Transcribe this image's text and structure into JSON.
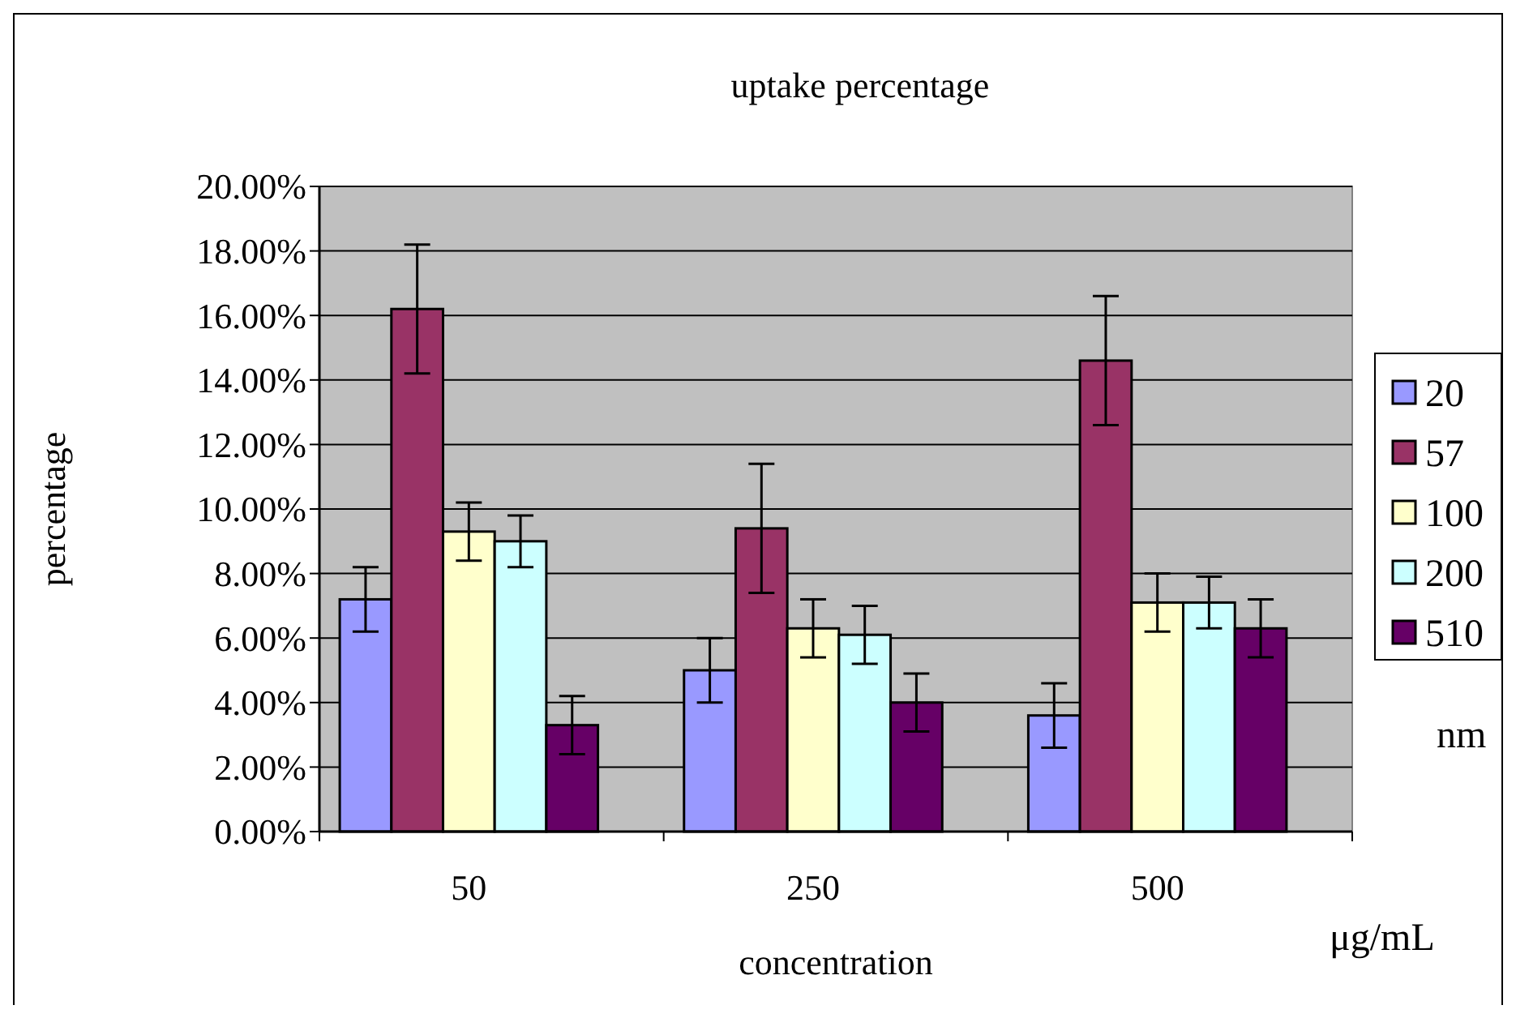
{
  "chart_data": {
    "type": "bar",
    "title": "uptake percentage",
    "xlabel": "concentration",
    "ylabel": "percentage",
    "categories": [
      "50",
      "250",
      "500"
    ],
    "series": [
      {
        "name": "20",
        "color": "#9999ff",
        "values": [
          7.2,
          5.0,
          3.6
        ],
        "errors": [
          1.0,
          1.0,
          1.0
        ]
      },
      {
        "name": "57",
        "color": "#993366",
        "values": [
          16.2,
          9.4,
          14.6
        ],
        "errors": [
          2.0,
          2.0,
          2.0
        ]
      },
      {
        "name": "100",
        "color": "#ffffcc",
        "values": [
          9.3,
          6.3,
          7.1
        ],
        "errors": [
          0.9,
          0.9,
          0.9
        ]
      },
      {
        "name": "200",
        "color": "#ccffff",
        "values": [
          9.0,
          6.1,
          7.1
        ],
        "errors": [
          0.8,
          0.9,
          0.8
        ]
      },
      {
        "name": "510",
        "color": "#660066",
        "values": [
          3.3,
          4.0,
          6.3
        ],
        "errors": [
          0.9,
          0.9,
          0.9
        ]
      }
    ],
    "ylim": [
      0,
      20
    ],
    "yticks": [
      {
        "value": 0,
        "label": "0.00%"
      },
      {
        "value": 2,
        "label": "2.00%"
      },
      {
        "value": 4,
        "label": "4.00%"
      },
      {
        "value": 6,
        "label": "6.00%"
      },
      {
        "value": 8,
        "label": "8.00%"
      },
      {
        "value": 10,
        "label": "10.00%"
      },
      {
        "value": 12,
        "label": "12.00%"
      },
      {
        "value": 14,
        "label": "14.00%"
      },
      {
        "value": 16,
        "label": "16.00%"
      },
      {
        "value": 18,
        "label": "18.00%"
      },
      {
        "value": 20,
        "label": "20.00%"
      }
    ],
    "grid": "y",
    "legend": "right",
    "annotations": [
      "μg/mL",
      "nm"
    ]
  }
}
